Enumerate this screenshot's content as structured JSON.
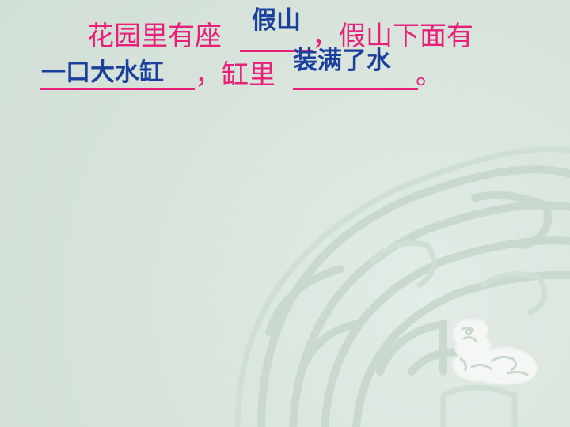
{
  "line1": {
    "prefix": "花园里有座",
    "middle": "，假山下面有"
  },
  "line2": {
    "middle": "，缸里",
    "suffix": "。"
  },
  "answers": {
    "a1": "假山",
    "a2": "一口大水缸",
    "a3": "装满了水"
  },
  "colors": {
    "prompt_text": "#e8207a",
    "answer_text": "#1a3f9c",
    "background": "#dce7df",
    "pattern": "#c6d6cc"
  },
  "icons": {
    "emblem": "dragon-seal-icon"
  }
}
